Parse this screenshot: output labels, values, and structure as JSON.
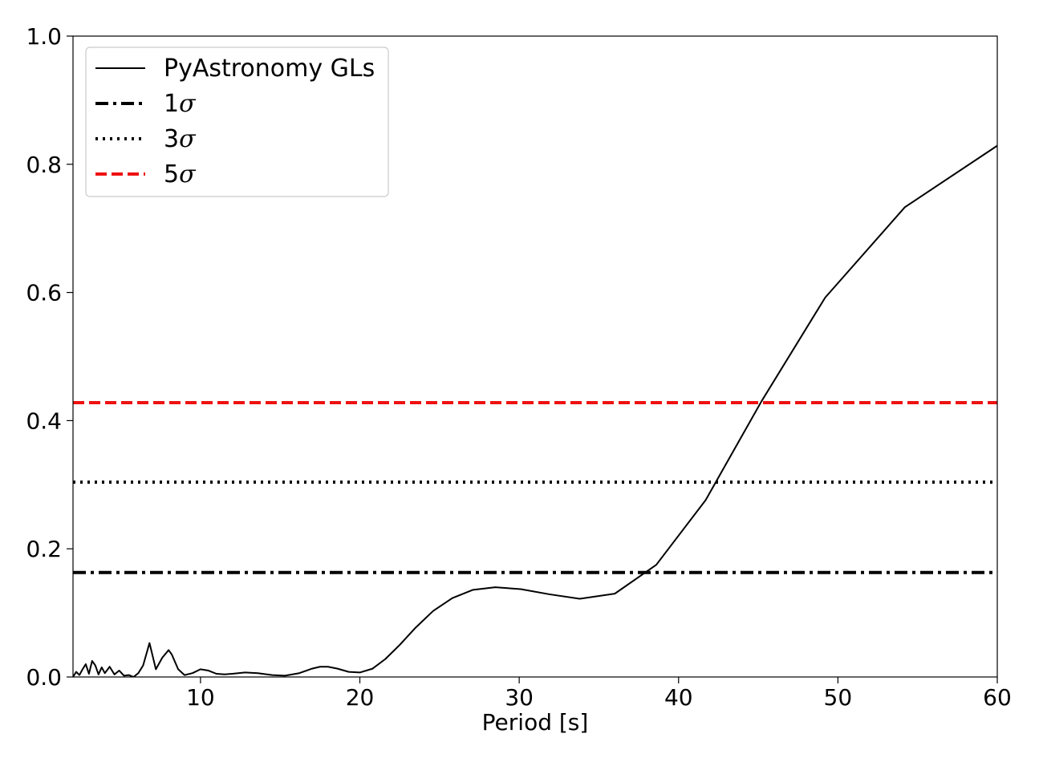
{
  "chart_data": {
    "type": "line",
    "xlabel": "Period [s]",
    "ylabel": "",
    "xlim": [
      2,
      60
    ],
    "ylim": [
      0,
      1
    ],
    "x_ticks": [
      10,
      20,
      30,
      40,
      50,
      60
    ],
    "y_ticks": [
      0.0,
      0.2,
      0.4,
      0.6,
      0.8,
      1.0
    ],
    "x_tick_labels": [
      "10",
      "20",
      "30",
      "40",
      "50",
      "60"
    ],
    "y_tick_labels": [
      "0.0",
      "0.2",
      "0.4",
      "0.6",
      "0.8",
      "1.0"
    ],
    "grid": false,
    "legend_position": "top-left",
    "series": [
      {
        "name": "PyAstronomy GLs",
        "style": "solid",
        "color": "#000000",
        "x": [
          2.0,
          2.2,
          2.4,
          2.6,
          2.8,
          3.0,
          3.2,
          3.4,
          3.6,
          3.8,
          4.0,
          4.3,
          4.6,
          4.9,
          5.2,
          5.5,
          5.8,
          6.1,
          6.4,
          6.8,
          7.2,
          7.6,
          8.0,
          8.2,
          8.6,
          9.0,
          9.5,
          10.0,
          10.5,
          11.0,
          11.5,
          12.0,
          12.8,
          13.6,
          14.5,
          15.3,
          16.2,
          17.0,
          17.5,
          18.0,
          18.6,
          19.3,
          20.0,
          20.8,
          21.6,
          22.5,
          23.5,
          24.6,
          25.8,
          27.1,
          28.5,
          30.1,
          31.9,
          33.8,
          36.0,
          38.6,
          41.7,
          45.2,
          49.2,
          54.2,
          60.0
        ],
        "y": [
          0.0,
          0.008,
          0.003,
          0.012,
          0.02,
          0.005,
          0.025,
          0.018,
          0.004,
          0.015,
          0.006,
          0.016,
          0.004,
          0.01,
          0.002,
          0.003,
          0.0,
          0.006,
          0.018,
          0.053,
          0.012,
          0.03,
          0.042,
          0.035,
          0.012,
          0.003,
          0.006,
          0.012,
          0.01,
          0.005,
          0.004,
          0.005,
          0.007,
          0.006,
          0.003,
          0.002,
          0.006,
          0.013,
          0.016,
          0.016,
          0.013,
          0.008,
          0.007,
          0.013,
          0.028,
          0.05,
          0.077,
          0.103,
          0.123,
          0.136,
          0.14,
          0.137,
          0.129,
          0.122,
          0.13,
          0.175,
          0.276,
          0.43,
          0.592,
          0.733,
          0.829
        ]
      }
    ],
    "hlines": [
      {
        "name": "1σ",
        "label_num": "1",
        "value": 0.163,
        "style": "dashdot",
        "color": "#000000"
      },
      {
        "name": "3σ",
        "label_num": "3",
        "value": 0.304,
        "style": "dotted",
        "color": "#000000"
      },
      {
        "name": "5σ",
        "label_num": "5",
        "value": 0.428,
        "style": "dashed",
        "color": "#ee1111"
      }
    ],
    "legend": [
      "PyAstronomy GLs",
      "1σ",
      "3σ",
      "5σ"
    ]
  }
}
